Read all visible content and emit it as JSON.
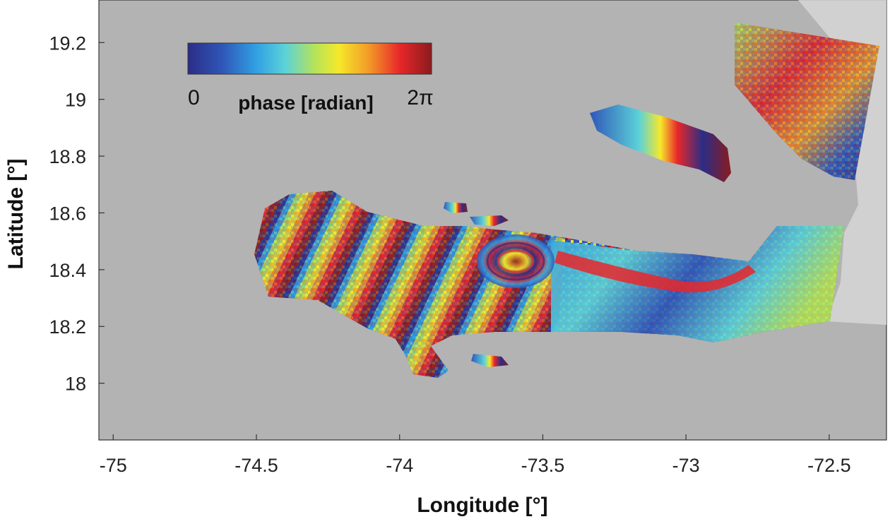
{
  "map": {
    "xlabel": "Longitude [°]",
    "ylabel": "Latitude [°]",
    "xlim": [
      -75.05,
      -72.3
    ],
    "ylim": [
      17.8,
      19.35
    ],
    "x_ticks": [
      "-75",
      "-74.5",
      "-74",
      "-73.5",
      "-73",
      "-72.5"
    ],
    "y_ticks": [
      "19.2",
      "19",
      "18.8",
      "18.6",
      "18.4",
      "18.2",
      "18"
    ],
    "background_color": "#b3b3b3",
    "relief_color": "#d6d6d6",
    "colorbar": {
      "min_label": "0",
      "max_label": "2π",
      "title": "phase [radian]",
      "colormap": [
        "#2b2d86",
        "#2f56b8",
        "#31a0e3",
        "#5cd2d8",
        "#b5e35a",
        "#f6e82a",
        "#f39c27",
        "#e8272a",
        "#8b1b1e"
      ]
    }
  }
}
